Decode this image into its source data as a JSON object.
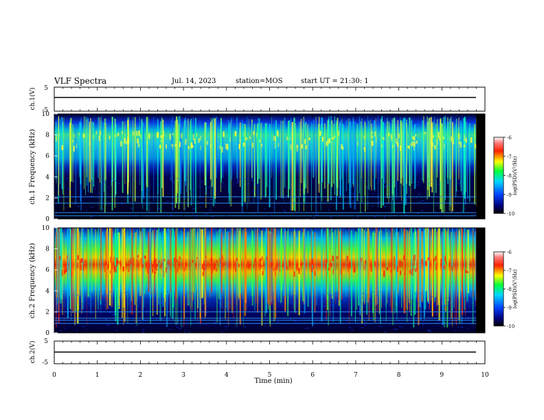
{
  "header": {
    "title": "VLF Spectra",
    "date": "Jul. 14, 2023",
    "station": "station=MOS",
    "start": "start UT = 21:30: 1"
  },
  "colorbar": {
    "label": "log(PSD)(V²/Hz)",
    "ticks": [
      "-6",
      "-7",
      "-8",
      "-9",
      "-10"
    ]
  },
  "chart_data": [
    {
      "type": "line",
      "ylabel": "ch.1(V)",
      "ylim": [
        -5,
        5
      ],
      "yticks": [
        "5",
        "-5"
      ],
      "x": [
        0,
        9.8
      ],
      "y": [
        0,
        0
      ]
    },
    {
      "type": "heatmap",
      "ylabel": "ch.1 Frequency (kHz)",
      "ylim": [
        0,
        10
      ],
      "yticks": [
        "0",
        "2",
        "4",
        "6",
        "8",
        "10"
      ],
      "xlim": [
        0,
        9.8
      ],
      "band_khz": [
        4,
        9
      ],
      "peak_khz": 7.5,
      "persistent_lines_khz": [
        0.3,
        0.6,
        1.5,
        2.1
      ]
    },
    {
      "type": "heatmap",
      "ylabel": "ch.2 Frequency (kHz)",
      "ylim": [
        0,
        10
      ],
      "yticks": [
        "0",
        "2",
        "4",
        "6",
        "8",
        "10"
      ],
      "xlim": [
        0,
        9.8
      ],
      "band_khz": [
        4,
        9.5
      ],
      "peak_khz": 6.5,
      "persistent_lines_khz": [
        0.9,
        1.2,
        1.4,
        2.0
      ]
    },
    {
      "type": "line",
      "ylabel": "ch.2(V)",
      "ylim": [
        -5,
        5
      ],
      "yticks": [
        "5",
        "-5"
      ],
      "x": [
        0,
        9.8
      ],
      "y": [
        0,
        0
      ]
    }
  ],
  "xaxis": {
    "label": "Time (min)",
    "ticks": [
      "0",
      "1",
      "2",
      "3",
      "4",
      "5",
      "6",
      "7",
      "8",
      "9",
      "10"
    ],
    "xlim": [
      0,
      10
    ]
  }
}
